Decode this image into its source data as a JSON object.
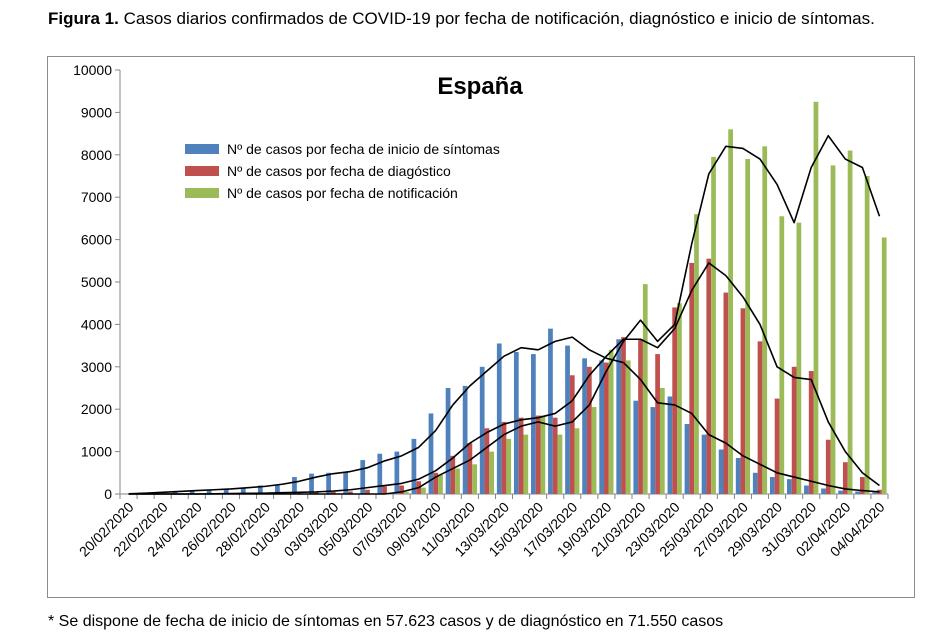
{
  "caption": {
    "label": "Figura 1.",
    "text": "Casos diarios confirmados de COVID-19 por fecha de notificación, diagnóstico e inicio de síntomas."
  },
  "footnote": "* Se dispone de fecha de inicio de síntomas en 57.623 casos y de diagnóstico en 71.550 casos",
  "chart_data": {
    "type": "bar",
    "title": "España",
    "ylim": [
      0,
      10000
    ],
    "yticks": [
      0,
      1000,
      2000,
      3000,
      4000,
      5000,
      6000,
      7000,
      8000,
      9000,
      10000
    ],
    "grid": false,
    "legend_position": "top-left",
    "categories": [
      "20/02/2020",
      "21/02/2020",
      "22/02/2020",
      "23/02/2020",
      "24/02/2020",
      "25/02/2020",
      "26/02/2020",
      "27/02/2020",
      "28/02/2020",
      "29/02/2020",
      "01/03/2020",
      "02/03/2020",
      "03/03/2020",
      "04/03/2020",
      "05/03/2020",
      "06/03/2020",
      "07/03/2020",
      "08/03/2020",
      "09/03/2020",
      "10/03/2020",
      "11/03/2020",
      "12/03/2020",
      "13/03/2020",
      "14/03/2020",
      "15/03/2020",
      "16/03/2020",
      "17/03/2020",
      "18/03/2020",
      "19/03/2020",
      "20/03/2020",
      "21/03/2020",
      "22/03/2020",
      "23/03/2020",
      "24/03/2020",
      "25/03/2020",
      "26/03/2020",
      "27/03/2020",
      "28/03/2020",
      "29/03/2020",
      "30/03/2020",
      "31/03/2020",
      "01/04/2020",
      "02/04/2020",
      "03/04/2020",
      "04/04/2020"
    ],
    "xtick_labels": [
      "20/02/2020",
      "22/02/2020",
      "24/02/2020",
      "26/02/2020",
      "28/02/2020",
      "01/03/2020",
      "03/03/2020",
      "05/03/2020",
      "07/03/2020",
      "09/03/2020",
      "11/03/2020",
      "13/03/2020",
      "15/03/2020",
      "17/03/2020",
      "19/03/2020",
      "21/03/2020",
      "23/03/2020",
      "25/03/2020",
      "27/03/2020",
      "29/03/2020",
      "31/03/2020",
      "02/04/2020",
      "04/04/2020"
    ],
    "series": [
      {
        "name": "Nº de casos por fecha de inicio de síntomas",
        "color": "#4f81bd",
        "values": [
          5,
          30,
          50,
          60,
          90,
          100,
          110,
          130,
          200,
          220,
          400,
          480,
          500,
          520,
          800,
          950,
          1000,
          1300,
          1900,
          2500,
          2550,
          3000,
          3550,
          3350,
          3300,
          3900,
          3500,
          3200,
          3150,
          3650,
          2200,
          2050,
          2300,
          1650,
          1400,
          1050,
          850,
          500,
          400,
          350,
          200,
          130,
          80,
          60,
          40
        ]
      },
      {
        "name": "Nº de casos por fecha de diagóstico",
        "color": "#c0504d",
        "values": [
          0,
          0,
          0,
          0,
          0,
          0,
          0,
          10,
          10,
          20,
          30,
          40,
          50,
          60,
          100,
          180,
          200,
          300,
          500,
          900,
          1200,
          1550,
          1700,
          1800,
          1850,
          1800,
          2800,
          3000,
          3100,
          3700,
          3650,
          3300,
          4400,
          5450,
          5550,
          4750,
          4380,
          3600,
          2250,
          3000,
          2900,
          1280,
          750,
          400,
          100
        ]
      },
      {
        "name": "Nº de casos por fecha de notificación",
        "color": "#9bbb59",
        "values": [
          0,
          0,
          0,
          0,
          0,
          0,
          0,
          0,
          0,
          0,
          0,
          0,
          0,
          0,
          0,
          0,
          50,
          150,
          450,
          600,
          700,
          1000,
          1300,
          1400,
          1850,
          1400,
          1550,
          2050,
          3400,
          3150,
          4950,
          2500,
          4500,
          6600,
          7950,
          8600,
          7900,
          8200,
          6550,
          6400,
          9250,
          7750,
          8100,
          7500,
          6050
        ]
      }
    ],
    "trend_lines": [
      {
        "series": 0,
        "values": [
          5,
          20,
          40,
          60,
          80,
          100,
          120,
          150,
          180,
          230,
          300,
          400,
          480,
          530,
          620,
          780,
          900,
          1100,
          1500,
          2100,
          2550,
          2900,
          3250,
          3450,
          3400,
          3600,
          3700,
          3400,
          3200,
          3100,
          2700,
          2150,
          2100,
          1900,
          1400,
          1200,
          900,
          700,
          500,
          400,
          300,
          200,
          120,
          80,
          50
        ]
      },
      {
        "series": 1,
        "values": [
          0,
          0,
          0,
          0,
          0,
          5,
          10,
          15,
          20,
          30,
          40,
          50,
          70,
          100,
          150,
          200,
          250,
          350,
          550,
          850,
          1200,
          1450,
          1650,
          1750,
          1800,
          1900,
          2200,
          2800,
          3250,
          3650,
          3650,
          3450,
          3900,
          4800,
          5450,
          5150,
          4650,
          4000,
          3000,
          2750,
          2700,
          1700,
          1000,
          500,
          200
        ]
      },
      {
        "series": 2,
        "values": [
          0,
          0,
          0,
          0,
          0,
          0,
          0,
          0,
          0,
          0,
          0,
          0,
          0,
          0,
          0,
          0,
          50,
          150,
          400,
          600,
          800,
          1100,
          1400,
          1600,
          1700,
          1600,
          1700,
          2100,
          2900,
          3600,
          4100,
          3600,
          4000,
          5900,
          7550,
          8200,
          8150,
          7900,
          7300,
          6400,
          7700,
          8450,
          7900,
          7700,
          6550
        ]
      }
    ]
  }
}
